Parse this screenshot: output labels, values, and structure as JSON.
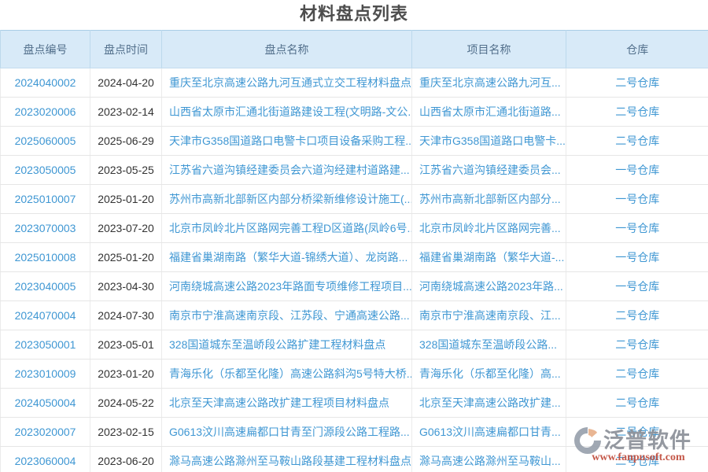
{
  "page_title": "材料盘点列表",
  "table": {
    "columns": {
      "id": "盘点编号",
      "date": "盘点时间",
      "name": "盘点名称",
      "project": "项目名称",
      "warehouse": "仓库"
    },
    "rows": [
      {
        "id": "2024040002",
        "date": "2024-04-20",
        "name": "重庆至北京高速公路九河互通式立交工程材料盘点",
        "project": "重庆至北京高速公路九河互...",
        "warehouse": "二号仓库"
      },
      {
        "id": "2023020006",
        "date": "2023-02-14",
        "name": "山西省太原市汇通北街道路建设工程(文明路-文公...",
        "project": "山西省太原市汇通北街道路...",
        "warehouse": "二号仓库"
      },
      {
        "id": "2025060005",
        "date": "2025-06-29",
        "name": "天津市G358国道路口电警卡口项目设备采购工程...",
        "project": "天津市G358国道路口电警卡...",
        "warehouse": "二号仓库"
      },
      {
        "id": "2023050005",
        "date": "2023-05-25",
        "name": "江苏省六道沟镇经建委员会六道沟经建村道路建...",
        "project": "江苏省六道沟镇经建委员会...",
        "warehouse": "一号仓库"
      },
      {
        "id": "2025010007",
        "date": "2025-01-20",
        "name": "苏州市高新北部新区内部分桥梁新维修设计施工(...",
        "project": "苏州市高新北部新区内部分...",
        "warehouse": "一号仓库"
      },
      {
        "id": "2023070003",
        "date": "2023-07-20",
        "name": "北京市凤岭北片区路网完善工程D区道路(凤岭6号...",
        "project": "北京市凤岭北片区路网完善...",
        "warehouse": "一号仓库"
      },
      {
        "id": "2025010008",
        "date": "2025-01-20",
        "name": "福建省巢湖南路（繁华大道-锦绣大道）、龙岗路...",
        "project": "福建省巢湖南路（繁华大道-...",
        "warehouse": "一号仓库"
      },
      {
        "id": "2023040005",
        "date": "2023-04-30",
        "name": "河南绕城高速公路2023年路面专项维修工程项目...",
        "project": "河南绕城高速公路2023年路...",
        "warehouse": "一号仓库"
      },
      {
        "id": "2024070004",
        "date": "2024-07-30",
        "name": "南京市宁淮高速南京段、江苏段、宁通高速公路...",
        "project": "南京市宁淮高速南京段、江...",
        "warehouse": "二号仓库"
      },
      {
        "id": "2023050001",
        "date": "2023-05-01",
        "name": "328国道城东至温峤段公路扩建工程材料盘点",
        "project": "328国道城东至温峤段公路...",
        "warehouse": "二号仓库"
      },
      {
        "id": "2023010009",
        "date": "2023-01-20",
        "name": "青海乐化（乐都至化隆）高速公路斜沟5号特大桥...",
        "project": "青海乐化（乐都至化隆）高...",
        "warehouse": "二号仓库"
      },
      {
        "id": "2024050004",
        "date": "2024-05-22",
        "name": "北京至天津高速公路改扩建工程项目材料盘点",
        "project": "北京至天津高速公路改扩建...",
        "warehouse": "二号仓库"
      },
      {
        "id": "2023020007",
        "date": "2023-02-15",
        "name": "G0613汶川高速扁都口甘青至门源段公路工程路...",
        "project": "G0613汶川高速扁都口甘青...",
        "warehouse": "二号仓库"
      },
      {
        "id": "2023060004",
        "date": "2023-06-20",
        "name": "滁马高速公路滁州至马鞍山路段基建工程材料盘点",
        "project": "滁马高速公路滁州至马鞍山...",
        "warehouse": "二号仓库"
      }
    ]
  },
  "watermark": {
    "brand": "泛普软件",
    "url": "www.fanpusoft.com"
  },
  "colors": {
    "header_bg": "#d8eaf8",
    "header_text": "#53708c",
    "link_blue": "#3f97d3",
    "date_text": "#333333",
    "title_text": "#4d4d4d",
    "watermark_gray": "#8b9098",
    "watermark_red": "#c04a3a"
  }
}
